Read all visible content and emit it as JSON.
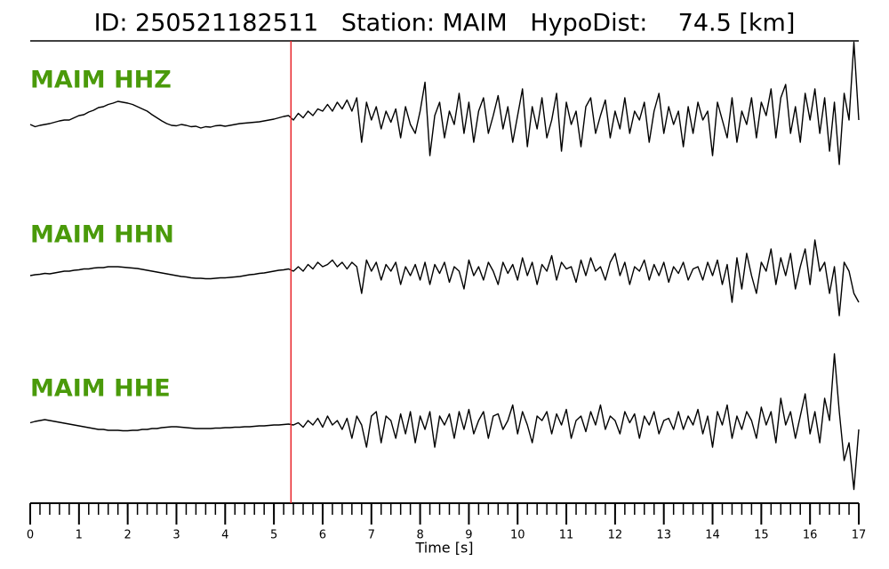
{
  "chart_data": {
    "type": "seismogram",
    "title": "ID: 250521182511   Station: MAIM   HypoDist:    74.5 [km]",
    "xlabel": "Time [s]",
    "xlim": [
      0,
      17
    ],
    "xticks": [
      0,
      1,
      2,
      3,
      4,
      5,
      6,
      7,
      8,
      9,
      10,
      11,
      12,
      13,
      14,
      15,
      16,
      17
    ],
    "minor_tick_step": 0.2,
    "ylim": [
      -2,
      2
    ],
    "pick_time": 5.35,
    "pick_color": "#e8242a",
    "label_color": "#4a9a0a",
    "x": [
      0,
      0.1,
      0.2,
      0.3,
      0.4,
      0.5,
      0.6,
      0.7,
      0.8,
      0.9,
      1,
      1.1,
      1.2,
      1.3,
      1.4,
      1.5,
      1.6,
      1.7,
      1.8,
      1.9,
      2,
      2.1,
      2.2,
      2.3,
      2.4,
      2.5,
      2.6,
      2.7,
      2.8,
      2.9,
      3,
      3.1,
      3.2,
      3.3,
      3.4,
      3.5,
      3.6,
      3.7,
      3.8,
      3.9,
      4,
      4.1,
      4.2,
      4.3,
      4.4,
      4.5,
      4.6,
      4.7,
      4.8,
      4.9,
      5,
      5.1,
      5.2,
      5.3,
      5.4,
      5.5,
      5.6,
      5.7,
      5.8,
      5.9,
      6,
      6.1,
      6.2,
      6.3,
      6.4,
      6.5,
      6.6,
      6.7,
      6.8,
      6.9,
      7,
      7.1,
      7.2,
      7.3,
      7.4,
      7.5,
      7.6,
      7.7,
      7.8,
      7.9,
      8,
      8.1,
      8.2,
      8.3,
      8.4,
      8.5,
      8.6,
      8.7,
      8.8,
      8.9,
      9,
      9.1,
      9.2,
      9.3,
      9.4,
      9.5,
      9.6,
      9.7,
      9.8,
      9.9,
      10,
      10.1,
      10.2,
      10.3,
      10.4,
      10.5,
      10.6,
      10.7,
      10.8,
      10.9,
      11,
      11.1,
      11.2,
      11.3,
      11.4,
      11.5,
      11.6,
      11.7,
      11.8,
      11.9,
      12,
      12.1,
      12.2,
      12.3,
      12.4,
      12.5,
      12.6,
      12.7,
      12.8,
      12.9,
      13,
      13.1,
      13.2,
      13.3,
      13.4,
      13.5,
      13.6,
      13.7,
      13.8,
      13.9,
      14,
      14.1,
      14.2,
      14.3,
      14.4,
      14.5,
      14.6,
      14.7,
      14.8,
      14.9,
      15,
      15.1,
      15.2,
      15.3,
      15.4,
      15.5,
      15.6,
      15.7,
      15.8,
      15.9,
      16,
      16.1,
      16.2,
      16.3,
      16.4,
      16.5,
      16.6,
      16.7,
      16.8,
      16.9,
      17
    ],
    "series": [
      {
        "name": "MAIM HHZ",
        "color": "#000000",
        "values": [
          0,
          -0.05,
          -0.02,
          0,
          0.02,
          0.05,
          0.08,
          0.1,
          0.1,
          0.15,
          0.2,
          0.22,
          0.28,
          0.32,
          0.38,
          0.4,
          0.45,
          0.48,
          0.52,
          0.5,
          0.48,
          0.45,
          0.4,
          0.35,
          0.3,
          0.22,
          0.15,
          0.08,
          0.02,
          -0.02,
          -0.03,
          0,
          -0.02,
          -0.05,
          -0.04,
          -0.08,
          -0.05,
          -0.06,
          -0.03,
          -0.02,
          -0.04,
          -0.02,
          0,
          0.02,
          0.03,
          0.04,
          0.05,
          0.06,
          0.08,
          0.1,
          0.12,
          0.15,
          0.18,
          0.2,
          0.1,
          0.25,
          0.15,
          0.3,
          0.2,
          0.35,
          0.3,
          0.45,
          0.3,
          0.5,
          0.35,
          0.55,
          0.3,
          0.6,
          -0.4,
          0.5,
          0.1,
          0.4,
          -0.1,
          0.3,
          0.05,
          0.35,
          -0.3,
          0.4,
          0,
          -0.2,
          0.3,
          0.95,
          -0.7,
          0.2,
          0.5,
          -0.3,
          0.3,
          0,
          0.7,
          -0.2,
          0.5,
          -0.4,
          0.3,
          0.6,
          -0.2,
          0.2,
          0.65,
          -0.1,
          0.4,
          -0.4,
          0.2,
          0.8,
          -0.5,
          0.4,
          -0.1,
          0.6,
          -0.3,
          0.1,
          0.7,
          -0.6,
          0.5,
          0,
          0.3,
          -0.5,
          0.4,
          0.6,
          -0.2,
          0.2,
          0.55,
          -0.3,
          0.3,
          -0.1,
          0.6,
          -0.2,
          0.3,
          0.1,
          0.5,
          -0.4,
          0.3,
          0.7,
          -0.2,
          0.4,
          0,
          0.3,
          -0.5,
          0.4,
          -0.2,
          0.5,
          0.1,
          0.3,
          -0.7,
          0.5,
          0.1,
          -0.3,
          0.6,
          -0.4,
          0.3,
          0,
          0.6,
          -0.3,
          0.5,
          0.2,
          0.8,
          -0.3,
          0.6,
          0.9,
          -0.2,
          0.4,
          -0.4,
          0.7,
          0.1,
          0.8,
          -0.2,
          0.6,
          -0.6,
          0.5,
          -0.9,
          0.7,
          0.1,
          1.85,
          0.1
        ]
      },
      {
        "name": "MAIM HHN",
        "color": "#000000",
        "values": [
          0,
          0.02,
          0.03,
          0.05,
          0.04,
          0.06,
          0.08,
          0.1,
          0.1,
          0.12,
          0.13,
          0.15,
          0.15,
          0.17,
          0.18,
          0.18,
          0.2,
          0.2,
          0.2,
          0.19,
          0.18,
          0.17,
          0.16,
          0.14,
          0.12,
          0.1,
          0.08,
          0.06,
          0.04,
          0.02,
          0,
          -0.02,
          -0.03,
          -0.05,
          -0.06,
          -0.06,
          -0.07,
          -0.07,
          -0.06,
          -0.05,
          -0.05,
          -0.04,
          -0.03,
          -0.02,
          0,
          0.02,
          0.03,
          0.05,
          0.06,
          0.08,
          0.1,
          0.12,
          0.13,
          0.15,
          0.1,
          0.2,
          0.1,
          0.25,
          0.15,
          0.3,
          0.2,
          0.25,
          0.35,
          0.2,
          0.3,
          0.15,
          0.3,
          0.2,
          -0.4,
          0.35,
          0.1,
          0.3,
          -0.1,
          0.25,
          0.1,
          0.3,
          -0.2,
          0.2,
          0,
          0.25,
          -0.1,
          0.3,
          -0.2,
          0.25,
          0.05,
          0.3,
          -0.15,
          0.2,
          0.1,
          -0.3,
          0.35,
          0,
          0.2,
          -0.1,
          0.3,
          0.1,
          -0.2,
          0.3,
          0.05,
          0.25,
          -0.1,
          0.4,
          0,
          0.3,
          -0.2,
          0.25,
          0.1,
          0.45,
          -0.1,
          0.3,
          0.15,
          0.2,
          -0.15,
          0.35,
          0,
          0.4,
          0.1,
          0.2,
          -0.1,
          0.3,
          0.5,
          0,
          0.3,
          -0.2,
          0.2,
          0.1,
          0.35,
          -0.1,
          0.25,
          0,
          0.3,
          -0.15,
          0.2,
          0.05,
          0.3,
          -0.1,
          0.15,
          0.2,
          -0.1,
          0.3,
          0,
          0.35,
          -0.2,
          0.25,
          -0.6,
          0.4,
          -0.3,
          0.5,
          0,
          -0.4,
          0.3,
          0.1,
          0.6,
          -0.2,
          0.4,
          0,
          0.5,
          -0.3,
          0.2,
          0.6,
          -0.2,
          0.8,
          0.1,
          0.3,
          -0.4,
          0.2,
          -0.9,
          0.3,
          0.1,
          -0.4,
          -0.6
        ]
      },
      {
        "name": "MAIM HHE",
        "color": "#000000",
        "values": [
          0.05,
          0.08,
          0.1,
          0.12,
          0.1,
          0.08,
          0.06,
          0.04,
          0.02,
          0,
          -0.02,
          -0.04,
          -0.06,
          -0.08,
          -0.1,
          -0.1,
          -0.12,
          -0.12,
          -0.12,
          -0.13,
          -0.13,
          -0.12,
          -0.12,
          -0.1,
          -0.1,
          -0.08,
          -0.08,
          -0.06,
          -0.05,
          -0.04,
          -0.04,
          -0.05,
          -0.06,
          -0.07,
          -0.08,
          -0.08,
          -0.08,
          -0.08,
          -0.07,
          -0.07,
          -0.06,
          -0.06,
          -0.05,
          -0.05,
          -0.04,
          -0.04,
          -0.03,
          -0.02,
          -0.02,
          -0.01,
          0,
          0,
          0.01,
          0.02,
          0,
          0.05,
          -0.05,
          0.1,
          0,
          0.15,
          -0.05,
          0.2,
          0,
          0.1,
          -0.1,
          0.15,
          -0.3,
          0.2,
          0,
          -0.5,
          0.2,
          0.3,
          -0.4,
          0.2,
          0.1,
          -0.3,
          0.25,
          -0.2,
          0.3,
          -0.4,
          0.2,
          -0.1,
          0.3,
          -0.5,
          0.2,
          0,
          0.25,
          -0.3,
          0.3,
          -0.1,
          0.35,
          -0.2,
          0.1,
          0.3,
          -0.3,
          0.2,
          0.25,
          -0.1,
          0.1,
          0.45,
          -0.2,
          0.3,
          0,
          -0.4,
          0.2,
          0.1,
          0.3,
          -0.2,
          0.25,
          0,
          0.35,
          -0.3,
          0.1,
          0.2,
          -0.15,
          0.3,
          0,
          0.45,
          -0.1,
          0.2,
          0.1,
          -0.2,
          0.3,
          0.05,
          0.25,
          -0.3,
          0.2,
          0,
          0.3,
          -0.2,
          0.1,
          0.15,
          -0.1,
          0.3,
          -0.1,
          0.2,
          0,
          0.35,
          -0.2,
          0.2,
          -0.5,
          0.3,
          0,
          0.45,
          -0.3,
          0.2,
          -0.1,
          0.3,
          0.1,
          -0.3,
          0.4,
          0,
          0.3,
          -0.4,
          0.6,
          0,
          0.3,
          -0.3,
          0.2,
          0.7,
          -0.2,
          0.3,
          -0.4,
          0.6,
          0.1,
          1.6,
          0.3,
          -0.8,
          -0.4,
          -1.45,
          -0.1
        ]
      }
    ]
  }
}
